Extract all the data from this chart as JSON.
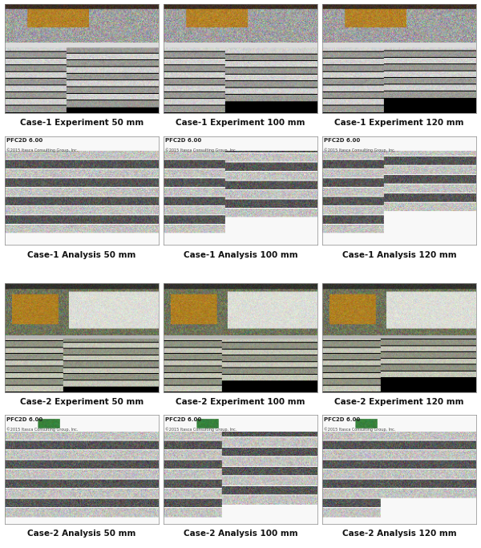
{
  "figsize": [
    6.0,
    6.83
  ],
  "dpi": 100,
  "background_color": "#ffffff",
  "captions": [
    [
      "Case-1 Experiment 50 mm",
      "Case-1 Experiment 100 mm",
      "Case-1 Experiment 120 mm"
    ],
    [
      "Case-1 Analysis 50 mm",
      "Case-1 Analysis 100 mm",
      "Case-1 Analysis 120 mm"
    ],
    [
      "Case-2 Experiment 50 mm",
      "Case-2 Experiment 100 mm",
      "Case-2 Experiment 120 mm"
    ],
    [
      "Case-2 Analysis 50 mm",
      "Case-2 Analysis 100 mm",
      "Case-2 Analysis 120 mm"
    ]
  ],
  "caption_fontsize": 7.5,
  "caption_color": "#111111",
  "pfc_label": "PFC2D 6.00",
  "pfc_sublabel": "©2015 Itasca Consulting Group, Inc.",
  "pfc_fontsize": 5.0,
  "pfc_subfontsize": 3.5
}
